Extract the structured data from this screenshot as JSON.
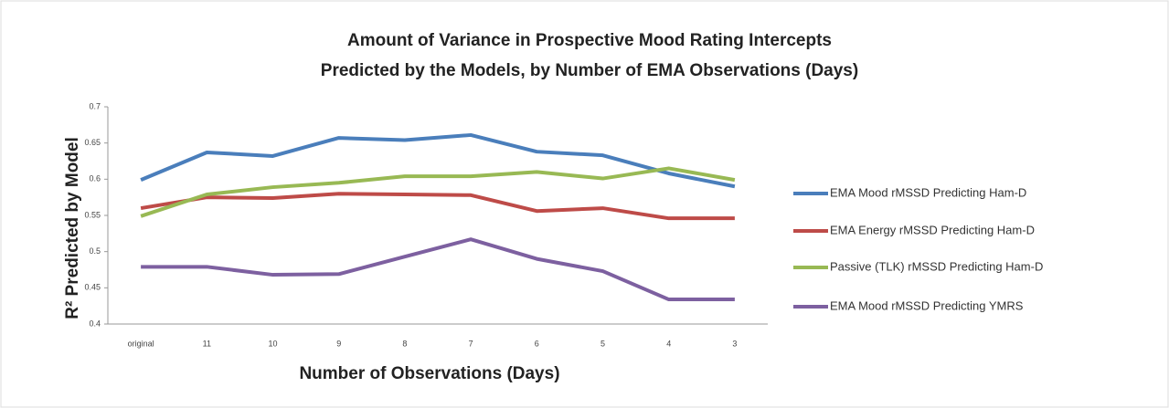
{
  "chart_data": {
    "type": "line",
    "title": [
      "Amount of Variance in Prospective Mood Rating Intercepts",
      "Predicted by the Models, by Number of EMA Observations (Days)"
    ],
    "x_label": "Number of Observations (Days)",
    "y_label": "R² Predicted by Model",
    "categories": [
      "original",
      "11",
      "10",
      "9",
      "8",
      "7",
      "6",
      "5",
      "4",
      "3"
    ],
    "ylim": [
      0.4,
      0.7
    ],
    "yticks": [
      0.4,
      0.45,
      0.5,
      0.55,
      0.6,
      0.65,
      0.7
    ],
    "grid": false,
    "legend": "right",
    "series": [
      {
        "name": "EMA Mood rMSSD Predicting Ham-D",
        "color": "#4a7ebb",
        "values": [
          0.599,
          0.637,
          0.632,
          0.657,
          0.654,
          0.661,
          0.638,
          0.633,
          0.608,
          0.59
        ]
      },
      {
        "name": "EMA Energy rMSSD Predicting Ham-D",
        "color": "#be4b48",
        "values": [
          0.56,
          0.575,
          0.574,
          0.58,
          0.579,
          0.578,
          0.556,
          0.56,
          0.546,
          0.546
        ]
      },
      {
        "name": "Passive (TLK) rMSSD Predicting Ham-D",
        "color": "#98b954",
        "values": [
          0.549,
          0.579,
          0.589,
          0.595,
          0.604,
          0.604,
          0.61,
          0.601,
          0.615,
          0.599
        ]
      },
      {
        "name": "EMA Mood rMSSD Predicting YMRS",
        "color": "#7d60a0",
        "values": [
          0.479,
          0.479,
          0.468,
          0.469,
          0.493,
          0.517,
          0.49,
          0.473,
          0.434,
          0.434
        ]
      }
    ]
  }
}
